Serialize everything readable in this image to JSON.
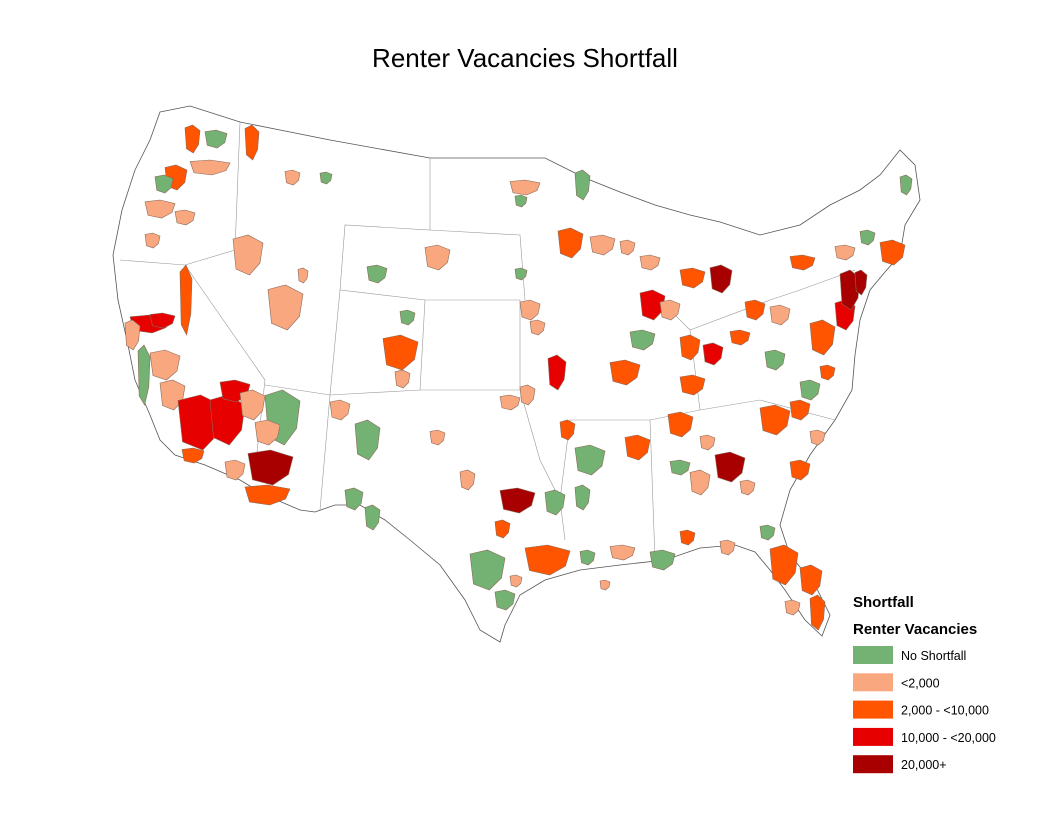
{
  "title": "Renter Vacancies Shortfall",
  "legend": {
    "title": "Shortfall",
    "subtitle": "Renter Vacancies",
    "items": [
      {
        "label": "No Shortfall",
        "color": "#73b273"
      },
      {
        "label": "<2,000",
        "color": "#f9a77f"
      },
      {
        "label": "2,000 - <10,000",
        "color": "#ff5500"
      },
      {
        "label": "10,000 - <20,000",
        "color": "#e60000"
      },
      {
        "label": "20,000+",
        "color": "#a80000"
      }
    ]
  }
}
